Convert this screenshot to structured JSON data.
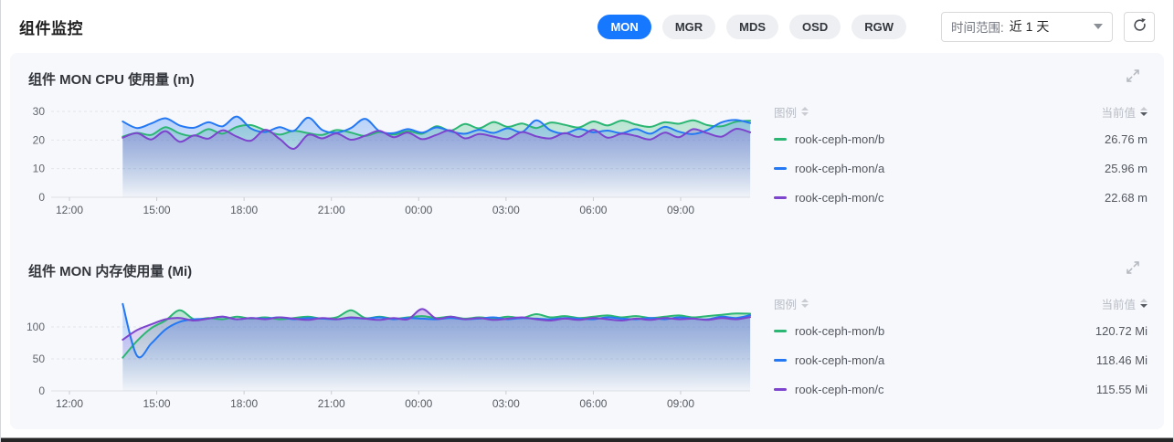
{
  "header": {
    "title": "组件监控",
    "tabs": [
      {
        "label": "MON",
        "active": true
      },
      {
        "label": "MGR",
        "active": false
      },
      {
        "label": "MDS",
        "active": false
      },
      {
        "label": "OSD",
        "active": false
      },
      {
        "label": "RGW",
        "active": false
      }
    ],
    "time_range_label": "时间范围:",
    "time_range_value": "近 1 天"
  },
  "legend": {
    "name_label": "图例",
    "value_label": "当前值"
  },
  "accent_color": "#1677ff",
  "chart_data": [
    {
      "type": "area-line",
      "title": "组件 MON CPU 使用量 (m)",
      "unit": "m",
      "ylim": [
        0,
        30
      ],
      "y_ticks": [
        0,
        10,
        20,
        30
      ],
      "x_ticks": [
        "12:00",
        "15:00",
        "18:00",
        "21:00",
        "00:00",
        "03:00",
        "06:00",
        "09:00"
      ],
      "x_tick_hours": [
        0,
        3,
        6,
        9,
        12,
        15,
        18,
        21
      ],
      "x_start_hour": 1.83,
      "x_end_hour": 23.39,
      "grid": "dashed-horizontal",
      "legend_position": "right",
      "series": [
        {
          "name": "rook-ceph-mon/b",
          "color": "#2bb673",
          "current": "26.76 m",
          "values": [
            21.2,
            22.5,
            21.8,
            24.5,
            22.3,
            21.5,
            23.8,
            22.2,
            24.6,
            25.2,
            23.4,
            21.9,
            23.2,
            22.4,
            21.8,
            23.5,
            22.6,
            21.4,
            22.8,
            21.9,
            23.1,
            22.2,
            24.8,
            23.3,
            25.6,
            24.1,
            26.3,
            24.6,
            25.8,
            24.2,
            26.1,
            25.3,
            24.4,
            26.5,
            25.1,
            26.8,
            25.4,
            24.6,
            26.2,
            25.7,
            26.9,
            25.2,
            24.8,
            26.4,
            26.76
          ]
        },
        {
          "name": "rook-ceph-mon/a",
          "color": "#2478f4",
          "current": "25.96 m",
          "values": [
            26.5,
            24.2,
            25.8,
            27.6,
            25.1,
            24.3,
            26.2,
            24.8,
            28.2,
            24.0,
            22.8,
            24.5,
            23.2,
            27.8,
            23.5,
            22.6,
            24.2,
            27.4,
            23.1,
            22.4,
            23.8,
            22.6,
            24.4,
            23.0,
            22.2,
            23.6,
            22.5,
            24.1,
            22.8,
            26.9,
            23.4,
            22.3,
            23.9,
            22.7,
            23.3,
            22.4,
            23.8,
            22.2,
            24.6,
            22.9,
            22.1,
            23.5,
            26.2,
            27.0,
            25.96
          ]
        },
        {
          "name": "rook-ceph-mon/c",
          "color": "#7d44cd",
          "current": "22.68 m",
          "values": [
            20.8,
            22.4,
            20.2,
            23.1,
            19.4,
            21.6,
            20.5,
            23.4,
            21.2,
            19.8,
            23.6,
            20.4,
            16.9,
            21.8,
            20.6,
            22.3,
            20.1,
            21.5,
            23.2,
            21.0,
            22.6,
            20.3,
            21.8,
            23.4,
            20.6,
            22.1,
            21.2,
            20.4,
            22.8,
            21.3,
            20.6,
            22.4,
            21.1,
            23.6,
            20.8,
            22.2,
            21.4,
            20.2,
            22.6,
            21.0,
            23.8,
            22.4,
            21.2,
            23.9,
            22.68
          ]
        }
      ]
    },
    {
      "type": "area-line",
      "title": "组件 MON 内存使用量 (Mi)",
      "unit": "Mi",
      "ylim": [
        0,
        140
      ],
      "y_ticks": [
        0,
        50,
        100
      ],
      "x_ticks": [
        "12:00",
        "15:00",
        "18:00",
        "21:00",
        "00:00",
        "03:00",
        "06:00",
        "09:00"
      ],
      "x_tick_hours": [
        0,
        3,
        6,
        9,
        12,
        15,
        18,
        21
      ],
      "x_start_hour": 1.83,
      "x_end_hour": 23.39,
      "grid": "dashed-horizontal",
      "legend_position": "right",
      "series": [
        {
          "name": "rook-ceph-mon/b",
          "color": "#2bb673",
          "current": "120.72 Mi",
          "values": [
            52,
            78,
            98,
            110,
            126,
            112,
            114,
            112,
            116,
            113,
            115,
            112,
            114,
            116,
            113,
            115,
            126,
            114,
            116,
            113,
            115,
            117,
            114,
            116,
            113,
            115,
            113,
            116,
            114,
            120,
            115,
            117,
            114,
            116,
            118,
            115,
            117,
            114,
            116,
            118,
            115,
            117,
            119,
            121,
            120.72
          ]
        },
        {
          "name": "rook-ceph-mon/a",
          "color": "#2478f4",
          "current": "118.46 Mi",
          "values": [
            136,
            55,
            74,
            96,
            108,
            112,
            113,
            116,
            112,
            114,
            113,
            115,
            112,
            114,
            113,
            112,
            114,
            113,
            115,
            112,
            114,
            113,
            112,
            114,
            112,
            113,
            115,
            112,
            114,
            113,
            112,
            114,
            113,
            112,
            115,
            113,
            112,
            114,
            112,
            115,
            113,
            112,
            116,
            114,
            118.46
          ]
        },
        {
          "name": "rook-ceph-mon/c",
          "color": "#7d44cd",
          "current": "115.55 Mi",
          "values": [
            80,
            95,
            104,
            112,
            114,
            110,
            113,
            116,
            112,
            114,
            112,
            115,
            113,
            111,
            114,
            112,
            115,
            113,
            111,
            114,
            112,
            128,
            113,
            116,
            112,
            114,
            111,
            113,
            115,
            112,
            110,
            113,
            111,
            114,
            112,
            110,
            113,
            111,
            114,
            112,
            113,
            111,
            114,
            112,
            115.55
          ]
        }
      ]
    }
  ]
}
